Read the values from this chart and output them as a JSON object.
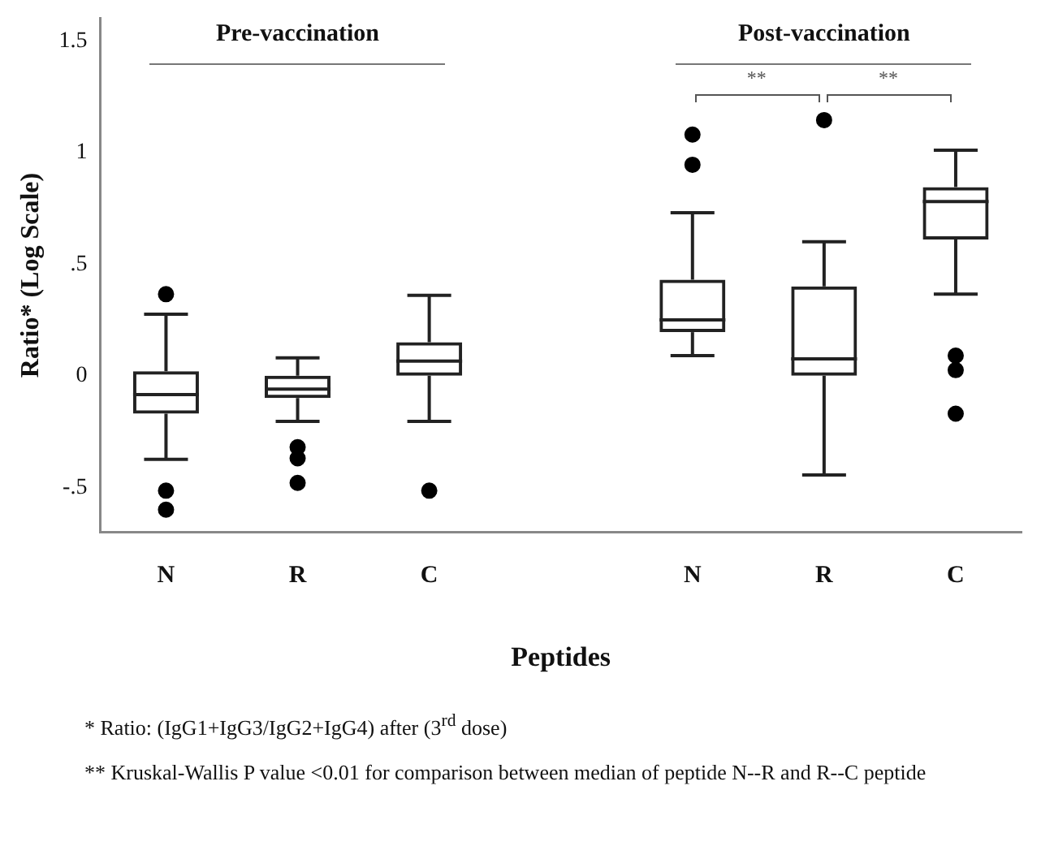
{
  "chart_data": {
    "type": "box",
    "xlabel": "Peptides",
    "ylabel": "Ratio* (Log Scale)",
    "categories": [
      "N",
      "R",
      "C",
      null,
      "N",
      "R",
      "C"
    ],
    "boxes": [
      {
        "low": -0.375,
        "q1": -0.17,
        "median": -0.085,
        "q3": 0.02,
        "high": 0.275,
        "outliers": [
          0.365,
          -0.515,
          -0.6
        ]
      },
      {
        "low": -0.205,
        "q1": -0.1,
        "median": -0.06,
        "q3": 0,
        "high": 0.08,
        "outliers": [
          -0.32,
          -0.37,
          -0.48
        ]
      },
      {
        "low": -0.205,
        "q1": 0,
        "median": 0.065,
        "q3": 0.15,
        "high": 0.36,
        "outliers": [
          -0.515
        ]
      },
      null,
      {
        "low": 0.09,
        "q1": 0.195,
        "median": 0.25,
        "q3": 0.43,
        "high": 0.73,
        "outliers": [
          1.08,
          0.945
        ]
      },
      {
        "low": -0.445,
        "q1": 0,
        "median": 0.075,
        "q3": 0.4,
        "high": 0.6,
        "outliers": [
          1.145
        ]
      },
      {
        "low": 0.365,
        "q1": 0.61,
        "median": 0.78,
        "q3": 0.845,
        "high": 1.01,
        "outliers": [
          0.09,
          0.025,
          -0.17
        ]
      }
    ],
    "ylim": [
      -0.7,
      1.6
    ],
    "yticks": [
      {
        "value": -0.5,
        "label": "-.5"
      },
      0,
      {
        "value": 0.5,
        "label": ".5"
      },
      1,
      1.5
    ],
    "grid": false,
    "legend": false,
    "annotations": [
      "Pre-vaccination",
      "Post-vaccination",
      "**",
      "**",
      "* Ratio: (IgG1+IgG3/IgG2+IgG4) after (3$^{rd}$ dose)",
      "** Kruskal-Wallis P value <0.01 for comparison between median of peptide N--R and R--C peptide"
    ]
  }
}
